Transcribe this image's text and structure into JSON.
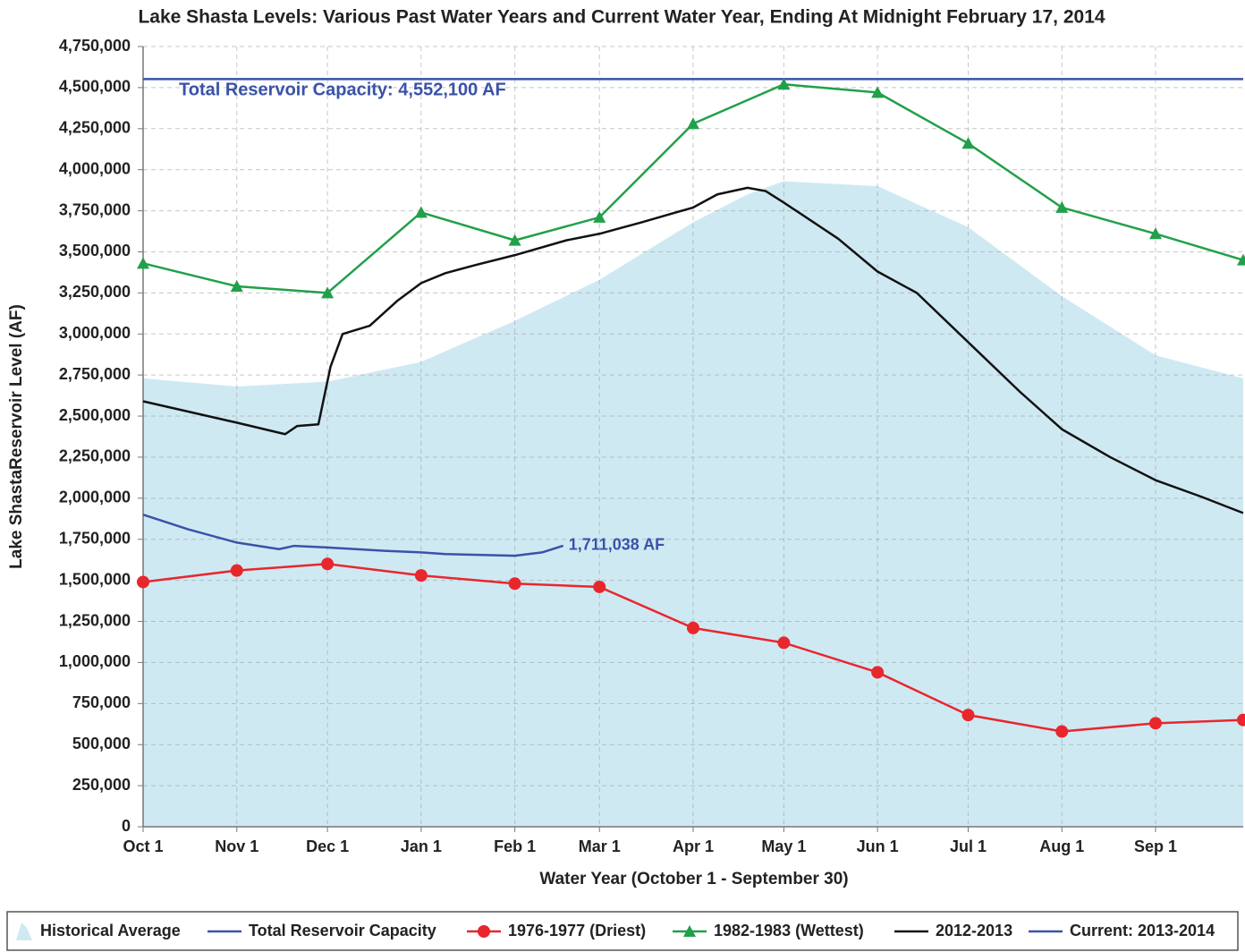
{
  "chart_data": {
    "type": "line",
    "title": "Lake Shasta Levels: Various Past Water Years and Current Water Year, Ending At Midnight February 17, 2014",
    "x_label": "Water Year (October 1 - September 30)",
    "y_label": "Lake ShastaReservoir Level (AF)",
    "xlim": [
      0,
      364
    ],
    "ylim": [
      0,
      4750000
    ],
    "grid": true,
    "legend": "bottom",
    "xticks": [
      {
        "value": 0,
        "label": "Oct 1"
      },
      {
        "value": 31,
        "label": "Nov 1"
      },
      {
        "value": 61,
        "label": "Dec 1"
      },
      {
        "value": 92,
        "label": "Jan 1"
      },
      {
        "value": 123,
        "label": "Feb 1"
      },
      {
        "value": 151,
        "label": "Mar 1"
      },
      {
        "value": 182,
        "label": "Apr 1"
      },
      {
        "value": 212,
        "label": "May 1"
      },
      {
        "value": 243,
        "label": "Jun 1"
      },
      {
        "value": 273,
        "label": "Jul 1"
      },
      {
        "value": 304,
        "label": "Aug 1"
      },
      {
        "value": 335,
        "label": "Sep 1"
      }
    ],
    "yticks": [
      0,
      {
        "value": 250000,
        "label": "250,000"
      },
      {
        "value": 500000,
        "label": "500,000"
      },
      {
        "value": 750000,
        "label": "750,000"
      },
      {
        "value": 1000000,
        "label": "1,000,000"
      },
      {
        "value": 1250000,
        "label": "1,250,000"
      },
      {
        "value": 1500000,
        "label": "1,500,000"
      },
      {
        "value": 1750000,
        "label": "1,750,000"
      },
      {
        "value": 2000000,
        "label": "2,000,000"
      },
      {
        "value": 2250000,
        "label": "2,250,000"
      },
      {
        "value": 2500000,
        "label": "2,500,000"
      },
      {
        "value": 2750000,
        "label": "2,750,000"
      },
      {
        "value": 3000000,
        "label": "3,000,000"
      },
      {
        "value": 3250000,
        "label": "3,250,000"
      },
      {
        "value": 3500000,
        "label": "3,500,000"
      },
      {
        "value": 3750000,
        "label": "3,750,000"
      },
      {
        "value": 4000000,
        "label": "4,000,000"
      },
      {
        "value": 4250000,
        "label": "4,250,000"
      },
      {
        "value": 4500000,
        "label": "4,500,000"
      },
      {
        "value": 4750000,
        "label": "4,750,000"
      }
    ],
    "series": [
      {
        "name": "Historical Average",
        "kind": "area",
        "color": "#cfe9f3",
        "x": [
          0,
          31,
          61,
          92,
          123,
          151,
          182,
          200,
          212,
          243,
          273,
          304,
          335,
          364
        ],
        "values": [
          2730000,
          2680000,
          2710000,
          2830000,
          3080000,
          3330000,
          3680000,
          3850000,
          3930000,
          3900000,
          3650000,
          3230000,
          2870000,
          2730000
        ]
      },
      {
        "name": "Total Reservoir Capacity",
        "kind": "line",
        "color": "#3a52a8",
        "label": "Total Reservoir Capacity: 4,552,100 AF",
        "x": [
          0,
          364
        ],
        "values": [
          4552100,
          4552100
        ]
      },
      {
        "name": "1976-1977 (Driest)",
        "kind": "line",
        "marker": "circle",
        "color": "#e8272c",
        "x": [
          0,
          31,
          61,
          92,
          123,
          151,
          182,
          212,
          243,
          273,
          304,
          335,
          364
        ],
        "values": [
          1490000,
          1560000,
          1600000,
          1530000,
          1480000,
          1460000,
          1210000,
          1120000,
          940000,
          680000,
          580000,
          630000,
          650000
        ]
      },
      {
        "name": "1982-1983 (Wettest)",
        "kind": "line",
        "marker": "triangle",
        "color": "#21a04a",
        "x": [
          0,
          31,
          61,
          92,
          123,
          151,
          182,
          212,
          243,
          273,
          304,
          335,
          364
        ],
        "values": [
          3430000,
          3290000,
          3250000,
          3740000,
          3570000,
          3710000,
          4280000,
          4520000,
          4470000,
          4160000,
          3770000,
          3610000,
          3450000
        ]
      },
      {
        "name": "2012-2013",
        "kind": "line",
        "color": "#111111",
        "x": [
          0,
          31,
          47,
          51,
          58,
          62,
          66,
          75,
          84,
          92,
          100,
          110,
          123,
          140,
          151,
          165,
          182,
          190,
          200,
          206,
          212,
          230,
          243,
          256,
          273,
          290,
          304,
          320,
          335,
          350,
          364
        ],
        "values": [
          2590000,
          2460000,
          2390000,
          2440000,
          2450000,
          2800000,
          3000000,
          3050000,
          3200000,
          3310000,
          3370000,
          3420000,
          3480000,
          3570000,
          3610000,
          3680000,
          3770000,
          3850000,
          3890000,
          3870000,
          3800000,
          3580000,
          3380000,
          3250000,
          2950000,
          2650000,
          2420000,
          2250000,
          2110000,
          2010000,
          1910000
        ]
      },
      {
        "name": "Current: 2013-2014",
        "kind": "line",
        "color": "#3a52a8",
        "label": "1,711,038 AF",
        "x": [
          0,
          15,
          31,
          45,
          50,
          61,
          80,
          92,
          100,
          123,
          132,
          139
        ],
        "values": [
          1900000,
          1810000,
          1730000,
          1690000,
          1710000,
          1700000,
          1680000,
          1670000,
          1660000,
          1650000,
          1670000,
          1711038
        ]
      }
    ]
  }
}
